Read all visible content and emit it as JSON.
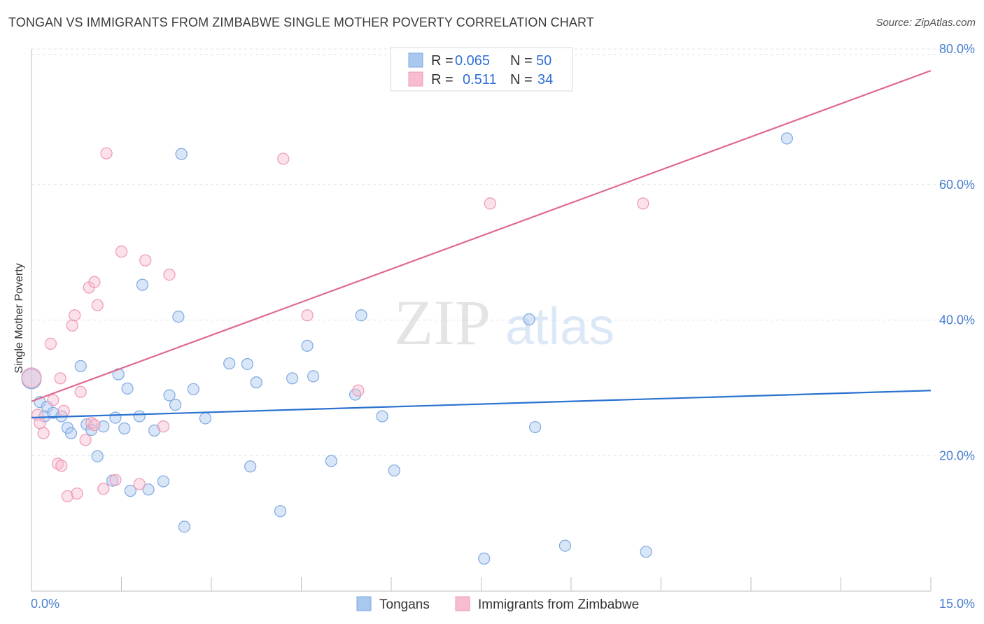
{
  "title": "TONGAN VS IMMIGRANTS FROM ZIMBABWE SINGLE MOTHER POVERTY CORRELATION CHART",
  "source": "Source: ZipAtlas.com",
  "watermark": {
    "zip": "ZIP",
    "atlas": "atlas"
  },
  "colors": {
    "blue_fill": "#a9c8f0",
    "blue_stroke": "#7fa9e0",
    "blue_line": "#2a72d0",
    "pink_fill": "#f7bcd0",
    "pink_stroke": "#ee98b6",
    "pink_line": "#e0698f",
    "grid": "#dde3ea",
    "tick_text": "#4a7fd0"
  },
  "legend": {
    "rows": [
      {
        "r_label": "R =",
        "r_value": "0.065",
        "n_label": "N =",
        "n_value": "50"
      },
      {
        "r_label": "R =",
        "r_value": "0.511",
        "n_label": "N =",
        "n_value": "34"
      }
    ]
  },
  "chart_data": {
    "type": "scatter",
    "title": "TONGAN VS IMMIGRANTS FROM ZIMBABWE SINGLE MOTHER POVERTY CORRELATION CHART",
    "xlabel": "",
    "ylabel": "Single Mother Poverty",
    "xlim": [
      0,
      15
    ],
    "ylim": [
      0,
      80
    ],
    "x_tick_labels": [
      "0.0%",
      "15.0%"
    ],
    "y_tick_labels": [
      {
        "value": 20,
        "label": "20.0%"
      },
      {
        "value": 40,
        "label": "40.0%"
      },
      {
        "value": 60,
        "label": "60.0%"
      },
      {
        "value": 80,
        "label": "80.0%"
      }
    ],
    "grid": true,
    "legend_position": "top-center",
    "series": [
      {
        "name": "Tongans",
        "color": "#a9c8f0",
        "trend": {
          "x": [
            0,
            15
          ],
          "y": [
            25.6,
            29.6
          ]
        },
        "points": [
          [
            0.0,
            31.3
          ],
          [
            0.14,
            27.9
          ],
          [
            0.22,
            25.8
          ],
          [
            0.26,
            27.2
          ],
          [
            0.36,
            26.3
          ],
          [
            0.5,
            25.8
          ],
          [
            0.6,
            24.1
          ],
          [
            0.66,
            23.3
          ],
          [
            0.82,
            33.2
          ],
          [
            0.92,
            24.6
          ],
          [
            1.0,
            23.8
          ],
          [
            1.1,
            19.9
          ],
          [
            1.2,
            24.3
          ],
          [
            1.35,
            16.3
          ],
          [
            1.4,
            25.6
          ],
          [
            1.45,
            32.0
          ],
          [
            1.55,
            24.0
          ],
          [
            1.6,
            29.9
          ],
          [
            1.65,
            14.8
          ],
          [
            1.8,
            25.8
          ],
          [
            1.85,
            45.2
          ],
          [
            1.95,
            15.0
          ],
          [
            2.05,
            23.7
          ],
          [
            2.2,
            16.2
          ],
          [
            2.3,
            28.9
          ],
          [
            2.4,
            27.5
          ],
          [
            2.5,
            64.5
          ],
          [
            2.55,
            9.5
          ],
          [
            2.7,
            29.8
          ],
          [
            2.9,
            25.5
          ],
          [
            3.3,
            33.6
          ],
          [
            3.6,
            33.5
          ],
          [
            3.65,
            18.4
          ],
          [
            3.75,
            30.8
          ],
          [
            4.15,
            11.8
          ],
          [
            4.35,
            31.4
          ],
          [
            4.6,
            36.2
          ],
          [
            4.7,
            31.7
          ],
          [
            5.0,
            19.2
          ],
          [
            5.4,
            29.0
          ],
          [
            5.5,
            40.7
          ],
          [
            5.85,
            25.8
          ],
          [
            6.05,
            17.8
          ],
          [
            7.55,
            4.8
          ],
          [
            8.3,
            40.1
          ],
          [
            8.4,
            24.2
          ],
          [
            8.9,
            6.7
          ],
          [
            10.25,
            5.8
          ],
          [
            12.6,
            66.8
          ],
          [
            2.45,
            40.5
          ]
        ]
      },
      {
        "name": "Immigrants from Zimbabwe",
        "color": "#f7bcd0",
        "trend": {
          "x": [
            0,
            15
          ],
          "y": [
            28.0,
            76.8
          ]
        },
        "points": [
          [
            0.0,
            31.5
          ],
          [
            0.1,
            26.0
          ],
          [
            0.14,
            24.8
          ],
          [
            0.2,
            23.3
          ],
          [
            0.32,
            36.5
          ],
          [
            0.36,
            28.2
          ],
          [
            0.44,
            18.8
          ],
          [
            0.48,
            31.4
          ],
          [
            0.54,
            26.6
          ],
          [
            0.6,
            14.0
          ],
          [
            0.68,
            39.2
          ],
          [
            0.72,
            40.7
          ],
          [
            0.76,
            14.4
          ],
          [
            0.82,
            29.4
          ],
          [
            0.9,
            22.3
          ],
          [
            0.96,
            44.8
          ],
          [
            1.0,
            24.8
          ],
          [
            1.05,
            45.6
          ],
          [
            1.1,
            42.2
          ],
          [
            1.2,
            15.1
          ],
          [
            1.25,
            64.6
          ],
          [
            1.4,
            16.4
          ],
          [
            1.5,
            50.1
          ],
          [
            1.8,
            15.8
          ],
          [
            1.9,
            48.8
          ],
          [
            2.2,
            24.3
          ],
          [
            2.3,
            46.7
          ],
          [
            4.2,
            63.8
          ],
          [
            4.6,
            40.7
          ],
          [
            5.45,
            29.6
          ],
          [
            7.65,
            57.2
          ],
          [
            10.2,
            57.2
          ],
          [
            0.5,
            18.5
          ],
          [
            1.05,
            24.5
          ]
        ]
      }
    ]
  }
}
